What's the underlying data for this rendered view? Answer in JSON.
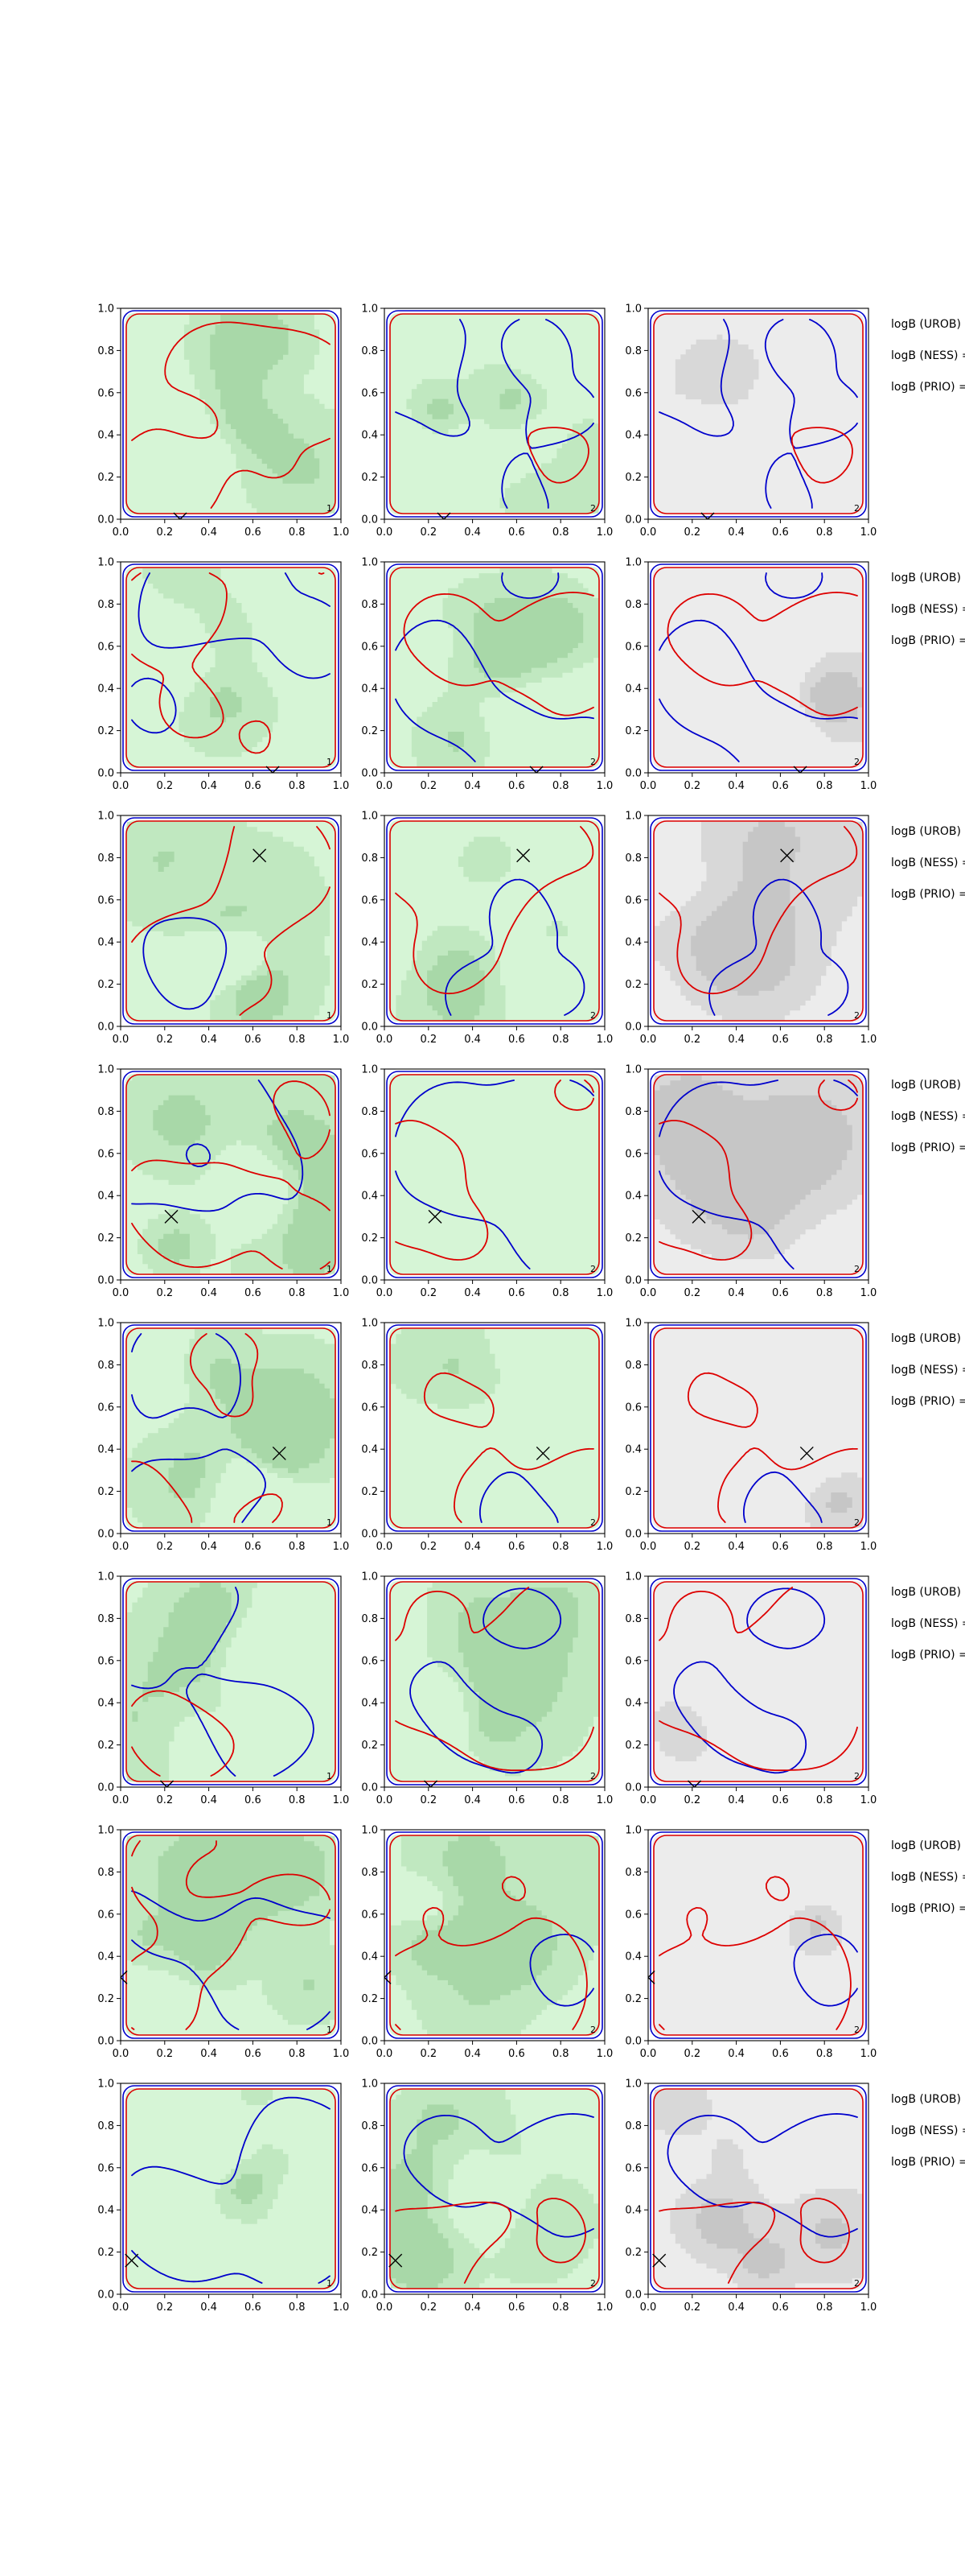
{
  "chart_data": {
    "type": "contour",
    "layout": {
      "rows": 8,
      "cols": 3
    },
    "xlim": [
      0,
      1
    ],
    "ylim": [
      0,
      1
    ],
    "xticks": [
      "0.0",
      "0.2",
      "0.4",
      "0.6",
      "0.8",
      "1.0"
    ],
    "yticks": [
      "0.0",
      "0.2",
      "0.4",
      "0.6",
      "0.8",
      "1.0"
    ],
    "panel_labels": [
      "1",
      "2",
      "2"
    ],
    "colors": {
      "contour_a": "#0000cc",
      "contour_b": "#dd0000",
      "fill_green_light": "#d6f5d6",
      "fill_green_mid": "#c0e8c0",
      "fill_green_dark": "#a8d8a8",
      "fill_gray_light": "#ececec",
      "fill_gray_mid": "#d8d8d8",
      "fill_gray_dark": "#c6c6c6",
      "marker": "#000000"
    },
    "row_markers": [
      {
        "x": 0.27,
        "y": 0.0
      },
      {
        "x": 0.69,
        "y": 0.0
      },
      {
        "x": 0.63,
        "y": 0.81
      },
      {
        "x": 0.23,
        "y": 0.3
      },
      {
        "x": 0.72,
        "y": 0.38
      },
      {
        "x": 0.21,
        "y": 0.0
      },
      {
        "x": 0.0,
        "y": 0.3
      },
      {
        "x": 0.05,
        "y": 0.16
      }
    ],
    "side_notes": [
      "logB (UROB) =",
      "logB (NESS) =",
      "logB (PRIO) ="
    ]
  }
}
